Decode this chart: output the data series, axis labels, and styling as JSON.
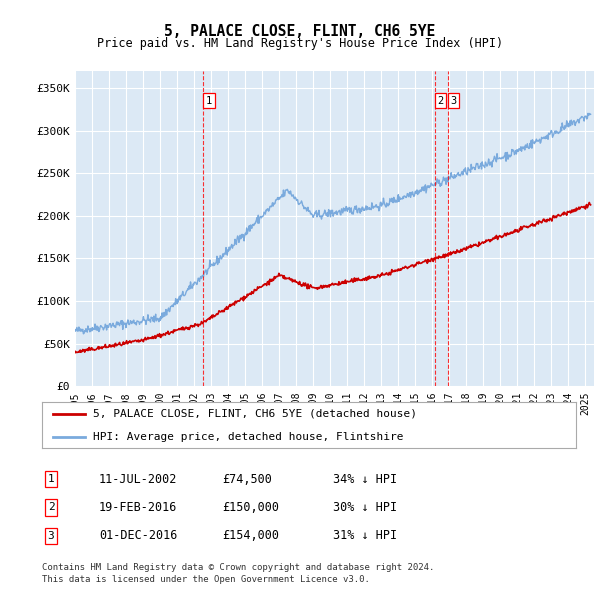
{
  "title": "5, PALACE CLOSE, FLINT, CH6 5YE",
  "subtitle": "Price paid vs. HM Land Registry's House Price Index (HPI)",
  "ylabel_ticks": [
    "£0",
    "£50K",
    "£100K",
    "£150K",
    "£200K",
    "£250K",
    "£300K",
    "£350K"
  ],
  "ytick_values": [
    0,
    50000,
    100000,
    150000,
    200000,
    250000,
    300000,
    350000
  ],
  "ylim": [
    0,
    370000
  ],
  "xlim_start": 1995.0,
  "xlim_end": 2025.5,
  "plot_bg_color": "#dce9f5",
  "sale_color": "#cc0000",
  "hpi_color": "#7aaadd",
  "transactions": [
    {
      "label": "1",
      "date_num": 2002.53,
      "price": 74500,
      "pct": "34%",
      "date_str": "11-JUL-2002"
    },
    {
      "label": "2",
      "date_num": 2016.13,
      "price": 150000,
      "pct": "30%",
      "date_str": "19-FEB-2016"
    },
    {
      "label": "3",
      "date_num": 2016.92,
      "price": 154000,
      "pct": "31%",
      "date_str": "01-DEC-2016"
    }
  ],
  "legend_line1": "5, PALACE CLOSE, FLINT, CH6 5YE (detached house)",
  "legend_line2": "HPI: Average price, detached house, Flintshire",
  "footer1": "Contains HM Land Registry data © Crown copyright and database right 2024.",
  "footer2": "This data is licensed under the Open Government Licence v3.0."
}
